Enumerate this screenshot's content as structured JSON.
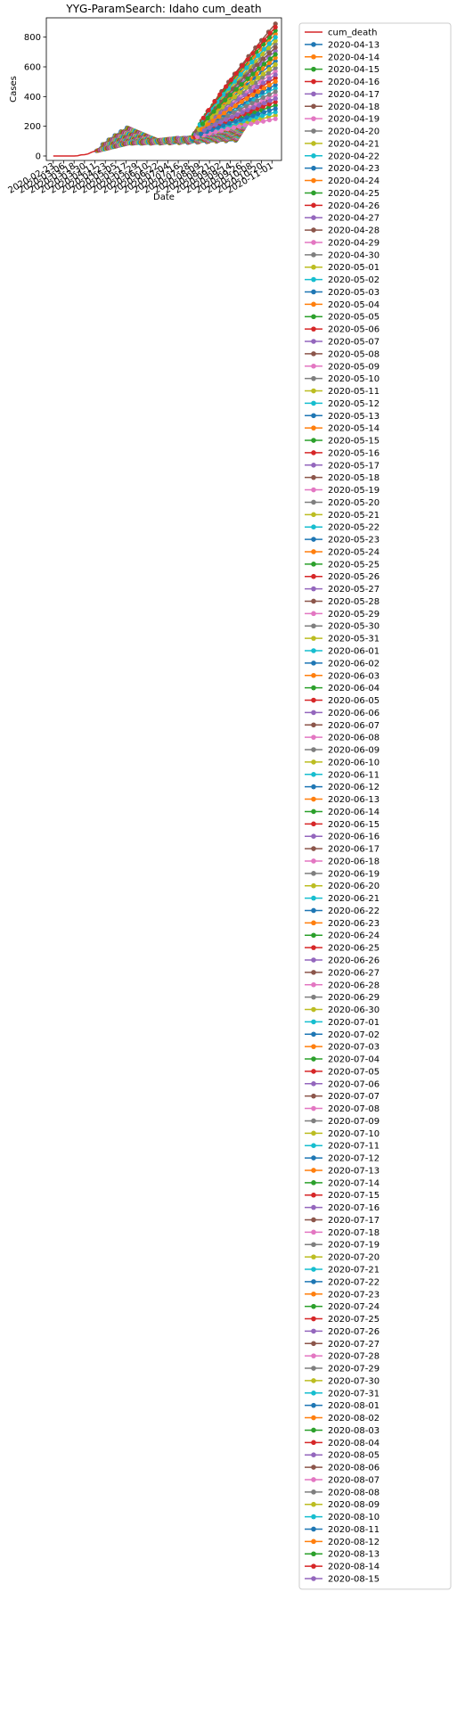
{
  "chart_data": {
    "type": "line",
    "title": "YYG-ParamSearch: Idaho cum_death",
    "xlabel": "Date",
    "ylabel": "Cases",
    "ylim": [
      -30,
      930
    ],
    "yticks": [
      0,
      200,
      400,
      600,
      800
    ],
    "xlim": [
      "2020-02-15",
      "2020-11-12"
    ],
    "xticks": [
      "2020-02-23",
      "2020-03-06",
      "2020-03-18",
      "2020-03-30",
      "2020-04-11",
      "2020-04-23",
      "2020-05-05",
      "2020-05-17",
      "2020-05-29",
      "2020-06-10",
      "2020-06-22",
      "2020-07-04",
      "2020-07-16",
      "2020-07-28",
      "2020-08-09",
      "2020-08-21",
      "2020-09-02",
      "2020-09-14",
      "2020-09-26",
      "2020-10-08",
      "2020-10-20",
      "2020-11-01"
    ],
    "grid": false,
    "legend_position": "outside-right",
    "observed": {
      "name": "cum_death",
      "color": "#d62728",
      "x": [
        "2020-02-23",
        "2020-03-06",
        "2020-03-18",
        "2020-03-22",
        "2020-03-26",
        "2020-03-30",
        "2020-04-03",
        "2020-04-07",
        "2020-04-11",
        "2020-04-13"
      ],
      "y": [
        0,
        0,
        0,
        2,
        7,
        9,
        14,
        25,
        33,
        40
      ]
    },
    "palette": [
      "#1f77b4",
      "#ff7f0e",
      "#2ca02c",
      "#d62728",
      "#9467bd",
      "#8c564b",
      "#e377c2",
      "#7f7f7f",
      "#bcbd22",
      "#17becf"
    ],
    "forecast_ranges": {
      "early_start": 35,
      "early_end": 190,
      "mid_start": 85,
      "mid_end": 120,
      "late_july_value": 110,
      "final_low": 250,
      "final_high": 890
    },
    "series_names": [
      "2020-04-13",
      "2020-04-14",
      "2020-04-15",
      "2020-04-16",
      "2020-04-17",
      "2020-04-18",
      "2020-04-19",
      "2020-04-20",
      "2020-04-21",
      "2020-04-22",
      "2020-04-23",
      "2020-04-24",
      "2020-04-25",
      "2020-04-26",
      "2020-04-27",
      "2020-04-28",
      "2020-04-29",
      "2020-04-30",
      "2020-05-01",
      "2020-05-02",
      "2020-05-03",
      "2020-05-04",
      "2020-05-05",
      "2020-05-06",
      "2020-05-07",
      "2020-05-08",
      "2020-05-09",
      "2020-05-10",
      "2020-05-11",
      "2020-05-12",
      "2020-05-13",
      "2020-05-14",
      "2020-05-15",
      "2020-05-16",
      "2020-05-17",
      "2020-05-18",
      "2020-05-19",
      "2020-05-20",
      "2020-05-21",
      "2020-05-22",
      "2020-05-23",
      "2020-05-24",
      "2020-05-25",
      "2020-05-26",
      "2020-05-27",
      "2020-05-28",
      "2020-05-29",
      "2020-05-30",
      "2020-05-31",
      "2020-06-01",
      "2020-06-02",
      "2020-06-03",
      "2020-06-04",
      "2020-06-05",
      "2020-06-06",
      "2020-06-07",
      "2020-06-08",
      "2020-06-09",
      "2020-06-10",
      "2020-06-11",
      "2020-06-12",
      "2020-06-13",
      "2020-06-14",
      "2020-06-15",
      "2020-06-16",
      "2020-06-17",
      "2020-06-18",
      "2020-06-19",
      "2020-06-20",
      "2020-06-21",
      "2020-06-22",
      "2020-06-23",
      "2020-06-24",
      "2020-06-25",
      "2020-06-26",
      "2020-06-27",
      "2020-06-28",
      "2020-06-29",
      "2020-06-30",
      "2020-07-01",
      "2020-07-02",
      "2020-07-03",
      "2020-07-04",
      "2020-07-05",
      "2020-07-06",
      "2020-07-07",
      "2020-07-08",
      "2020-07-09",
      "2020-07-10",
      "2020-07-11",
      "2020-07-12",
      "2020-07-13",
      "2020-07-14",
      "2020-07-15",
      "2020-07-16",
      "2020-07-17",
      "2020-07-18",
      "2020-07-19",
      "2020-07-20",
      "2020-07-21",
      "2020-07-22",
      "2020-07-23",
      "2020-07-24",
      "2020-07-25",
      "2020-07-26",
      "2020-07-27",
      "2020-07-28",
      "2020-07-29",
      "2020-07-30",
      "2020-07-31",
      "2020-08-01",
      "2020-08-02",
      "2020-08-03",
      "2020-08-04",
      "2020-08-05",
      "2020-08-06",
      "2020-08-07",
      "2020-08-08",
      "2020-08-09",
      "2020-08-10",
      "2020-08-11",
      "2020-08-12",
      "2020-08-13",
      "2020-08-14",
      "2020-08-15"
    ]
  }
}
